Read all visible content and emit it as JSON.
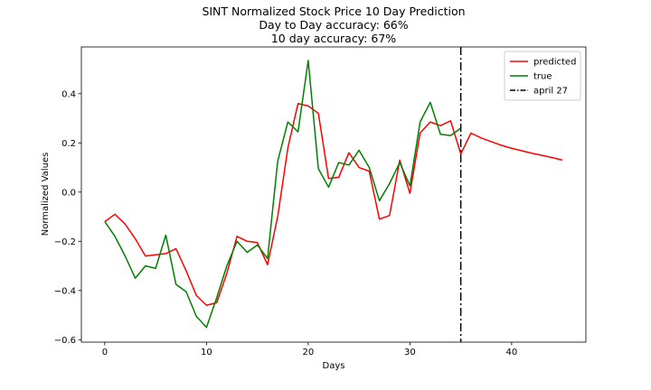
{
  "chart_data": {
    "type": "line",
    "title": [
      "SINT Normalized Stock Price 10 Day Prediction",
      "Day to Day accuracy: 66%",
      "10 day accuracy: 67%"
    ],
    "xlabel": "Days",
    "ylabel": "Normalized Values",
    "xlim": [
      -2.3,
      47.3
    ],
    "ylim": [
      -0.61,
      0.59
    ],
    "xticks": [
      0,
      10,
      20,
      30,
      40
    ],
    "yticks": [
      -0.6,
      -0.4,
      -0.2,
      0.0,
      0.2,
      0.4
    ],
    "ytick_labels": [
      "−0.6",
      "−0.4",
      "−0.2",
      "0.0",
      "0.2",
      "0.4"
    ],
    "grid": false,
    "legend_position": "top-right",
    "series": [
      {
        "name": "predicted",
        "color": "#ff0000",
        "x": [
          0,
          1,
          2,
          3,
          4,
          5,
          6,
          7,
          8,
          9,
          10,
          11,
          12,
          13,
          14,
          15,
          16,
          17,
          18,
          19,
          20,
          21,
          22,
          23,
          24,
          25,
          26,
          27,
          28,
          29,
          30,
          31,
          32,
          33,
          34,
          35,
          36,
          37,
          38,
          39,
          40,
          41,
          42,
          43,
          44,
          45
        ],
        "values": [
          -0.12,
          -0.09,
          -0.13,
          -0.19,
          -0.26,
          -0.255,
          -0.25,
          -0.23,
          -0.32,
          -0.42,
          -0.46,
          -0.45,
          -0.33,
          -0.18,
          -0.2,
          -0.205,
          -0.295,
          -0.1,
          0.18,
          0.36,
          0.35,
          0.32,
          0.055,
          0.06,
          0.16,
          0.1,
          0.085,
          -0.11,
          -0.095,
          0.13,
          -0.005,
          0.24,
          0.285,
          0.27,
          0.29,
          0.155,
          0.24,
          0.22,
          0.205,
          0.19,
          0.178,
          0.168,
          0.158,
          0.149,
          0.14,
          0.13
        ]
      },
      {
        "name": "true",
        "color": "#008000",
        "x": [
          0,
          1,
          2,
          3,
          4,
          5,
          6,
          7,
          8,
          9,
          10,
          11,
          12,
          13,
          14,
          15,
          16,
          17,
          18,
          19,
          20,
          21,
          22,
          23,
          24,
          25,
          26,
          27,
          28,
          29,
          30,
          31,
          32,
          33,
          34,
          35
        ],
        "values": [
          -0.12,
          -0.18,
          -0.26,
          -0.35,
          -0.3,
          -0.31,
          -0.175,
          -0.375,
          -0.405,
          -0.505,
          -0.55,
          -0.43,
          -0.3,
          -0.2,
          -0.245,
          -0.215,
          -0.27,
          0.125,
          0.285,
          0.245,
          0.535,
          0.095,
          0.02,
          0.12,
          0.11,
          0.17,
          0.1,
          -0.035,
          0.035,
          0.12,
          0.025,
          0.285,
          0.365,
          0.235,
          0.23,
          0.26
        ]
      }
    ],
    "vlines": [
      {
        "name": "april 27",
        "x": 35,
        "color": "#000000",
        "style": "dashdot"
      }
    ]
  }
}
